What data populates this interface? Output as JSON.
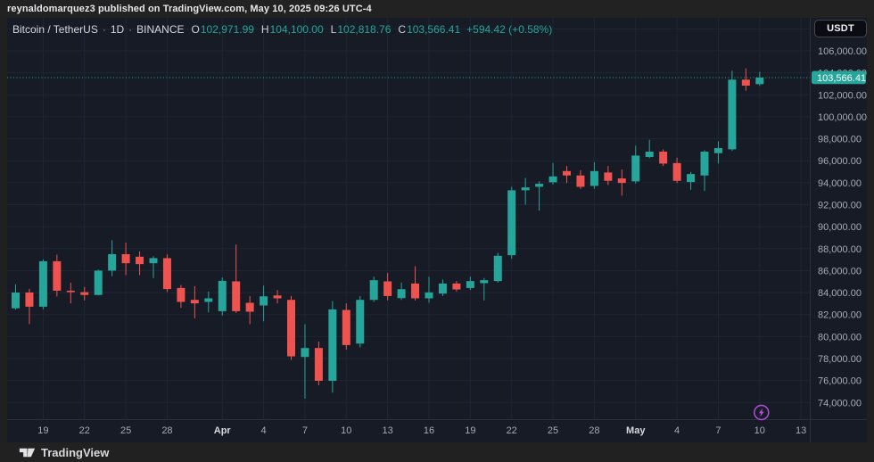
{
  "attribution_bar": {
    "text": "reynaldomarquez3 published on TradingView.com, May 10, 2025 09:26 UTC-4"
  },
  "header": {
    "symbol_title": "Bitcoin / TetherUS",
    "separator": "·",
    "interval": "1D",
    "exchange": "BINANCE",
    "ohlc": {
      "o_label": "O",
      "o": "102,971.99",
      "h_label": "H",
      "h": "104,100.00",
      "l_label": "L",
      "l": "102,818.76",
      "c_label": "C",
      "c": "103,566.41",
      "change": "+594.42 (+0.58%)"
    }
  },
  "price_axis": {
    "currency_button": "USDT",
    "last_price_label": "103,566.41",
    "labels": [
      {
        "price": 106000,
        "text": "106,000.00"
      },
      {
        "price": 104000,
        "text": "104,000.00"
      },
      {
        "price": 102000,
        "text": "102,000.00"
      },
      {
        "price": 100000,
        "text": "100,000.00"
      },
      {
        "price": 98000,
        "text": "98,000.00"
      },
      {
        "price": 96000,
        "text": "96,000.00"
      },
      {
        "price": 94000,
        "text": "94,000.00"
      },
      {
        "price": 92000,
        "text": "92,000.00"
      },
      {
        "price": 90000,
        "text": "90,000.00"
      },
      {
        "price": 88000,
        "text": "88,000.00"
      },
      {
        "price": 86000,
        "text": "86,000.00"
      },
      {
        "price": 84000,
        "text": "84,000.00"
      },
      {
        "price": 82000,
        "text": "82,000.00"
      },
      {
        "price": 80000,
        "text": "80,000.00"
      },
      {
        "price": 78000,
        "text": "78,000.00"
      },
      {
        "price": 76000,
        "text": "76,000.00"
      },
      {
        "price": 74000,
        "text": "74,000.00"
      }
    ]
  },
  "time_axis": {
    "labels": [
      {
        "text": "19",
        "index": 2,
        "bold": false
      },
      {
        "text": "22",
        "index": 5,
        "bold": false
      },
      {
        "text": "25",
        "index": 8,
        "bold": false
      },
      {
        "text": "28",
        "index": 11,
        "bold": false
      },
      {
        "text": "Apr",
        "index": 15,
        "bold": true
      },
      {
        "text": "4",
        "index": 18,
        "bold": false
      },
      {
        "text": "7",
        "index": 21,
        "bold": false
      },
      {
        "text": "10",
        "index": 24,
        "bold": false
      },
      {
        "text": "13",
        "index": 27,
        "bold": false
      },
      {
        "text": "16",
        "index": 30,
        "bold": false
      },
      {
        "text": "19",
        "index": 33,
        "bold": false
      },
      {
        "text": "22",
        "index": 36,
        "bold": false
      },
      {
        "text": "25",
        "index": 39,
        "bold": false
      },
      {
        "text": "28",
        "index": 42,
        "bold": false
      },
      {
        "text": "May",
        "index": 45,
        "bold": true
      },
      {
        "text": "4",
        "index": 48,
        "bold": false
      },
      {
        "text": "7",
        "index": 51,
        "bold": false
      },
      {
        "text": "10",
        "index": 54,
        "bold": false
      },
      {
        "text": "13",
        "index": 57,
        "bold": false
      }
    ]
  },
  "footer": {
    "brand": "TradingView"
  },
  "marker": {
    "type": "flash-icon",
    "candle_index": 54,
    "color": "#b44fd8"
  },
  "colors": {
    "up": "#26a69a",
    "down": "#ef5350",
    "panel_bg": "#171b26",
    "outer_bg": "#202021",
    "grid": "#1f2534",
    "axis_border": "#2a2f3b",
    "axis_text": "#a7abb6",
    "axis_text_bold": "#d6d8de",
    "price_label_bg": "#26a69a",
    "price_label_text": "#ffffff"
  },
  "chart_data": {
    "type": "candlestick",
    "title": "Bitcoin / TetherUS · 1D · BINANCE",
    "symbol": "BTC/USDT",
    "interval": "1D",
    "last_price": 103566.41,
    "price_axis_range": [
      74000,
      106000
    ],
    "grid": true,
    "dates": [
      "Mar 17",
      "Mar 18",
      "Mar 19",
      "Mar 20",
      "Mar 21",
      "Mar 22",
      "Mar 23",
      "Mar 24",
      "Mar 25",
      "Mar 26",
      "Mar 27",
      "Mar 28",
      "Mar 29",
      "Mar 30",
      "Mar 31",
      "Apr 1",
      "Apr 2",
      "Apr 3",
      "Apr 4",
      "Apr 5",
      "Apr 6",
      "Apr 7",
      "Apr 8",
      "Apr 9",
      "Apr 10",
      "Apr 11",
      "Apr 12",
      "Apr 13",
      "Apr 14",
      "Apr 15",
      "Apr 16",
      "Apr 17",
      "Apr 18",
      "Apr 19",
      "Apr 20",
      "Apr 21",
      "Apr 22",
      "Apr 23",
      "Apr 24",
      "Apr 25",
      "Apr 26",
      "Apr 27",
      "Apr 28",
      "Apr 29",
      "Apr 30",
      "May 1",
      "May 2",
      "May 3",
      "May 4",
      "May 5",
      "May 6",
      "May 7",
      "May 8",
      "May 9",
      "May 10"
    ],
    "ohlc": [
      [
        82575,
        84756,
        82444,
        84010
      ],
      [
        84010,
        84340,
        81134,
        82718
      ],
      [
        82718,
        87020,
        82477,
        86854
      ],
      [
        86854,
        87453,
        83647,
        84175
      ],
      [
        84175,
        84910,
        83020,
        84043
      ],
      [
        84043,
        84522,
        83291,
        83787
      ],
      [
        83787,
        86097,
        83742,
        86000
      ],
      [
        86000,
        88772,
        85495,
        87498
      ],
      [
        87498,
        88543,
        85592,
        86674
      ],
      [
        87267,
        87750,
        85592,
        86593
      ],
      [
        86674,
        87300,
        85320,
        87137
      ],
      [
        87137,
        87480,
        84050,
        84320
      ],
      [
        84424,
        84700,
        82613,
        83157
      ],
      [
        83340,
        84590,
        81660,
        83020
      ],
      [
        83157,
        84100,
        82200,
        83480
      ],
      [
        82310,
        85370,
        81930,
        85072
      ],
      [
        85023,
        88375,
        82150,
        82310
      ],
      [
        83070,
        83690,
        81120,
        82260
      ],
      [
        82830,
        84640,
        81390,
        83660
      ],
      [
        83740,
        84230,
        83020,
        83480
      ],
      [
        83340,
        83690,
        77880,
        78200
      ],
      [
        78146,
        81120,
        74350,
        78958
      ],
      [
        78958,
        79550,
        75570,
        75976
      ],
      [
        75976,
        83230,
        74900,
        82470
      ],
      [
        82420,
        83020,
        78820,
        79227
      ],
      [
        79360,
        83690,
        79010,
        83340
      ],
      [
        83340,
        85454,
        83155,
        85130
      ],
      [
        85020,
        85780,
        83290,
        83690
      ],
      [
        83500,
        84910,
        83340,
        84310
      ],
      [
        84830,
        86400,
        83290,
        83480
      ],
      [
        83480,
        85450,
        83070,
        84020
      ],
      [
        83910,
        85190,
        83690,
        84830
      ],
      [
        84830,
        85050,
        84100,
        84290
      ],
      [
        84420,
        85450,
        84240,
        85050
      ],
      [
        84860,
        85320,
        83290,
        85130
      ],
      [
        85050,
        87620,
        84910,
        87350
      ],
      [
        87404,
        93630,
        87080,
        93310
      ],
      [
        93310,
        94440,
        92000,
        93575
      ],
      [
        93630,
        94120,
        91460,
        93900
      ],
      [
        94040,
        95790,
        93840,
        94575
      ],
      [
        95060,
        95525,
        93980,
        94660
      ],
      [
        94660,
        95140,
        93440,
        93630
      ],
      [
        93710,
        95870,
        93440,
        95060
      ],
      [
        94930,
        95525,
        93790,
        94170
      ],
      [
        94390,
        95200,
        92820,
        93980
      ],
      [
        94120,
        97365,
        93925,
        96470
      ],
      [
        96340,
        97905,
        96230,
        96825
      ],
      [
        96825,
        97040,
        95525,
        95740
      ],
      [
        95790,
        96280,
        93980,
        94170
      ],
      [
        94060,
        94980,
        93355,
        94790
      ],
      [
        94660,
        96960,
        93250,
        96825
      ],
      [
        96690,
        97770,
        95740,
        97150
      ],
      [
        97040,
        104190,
        96890,
        103380
      ],
      [
        103380,
        104400,
        102370,
        102835
      ],
      [
        102972,
        104100,
        102819,
        103566.41
      ]
    ]
  }
}
